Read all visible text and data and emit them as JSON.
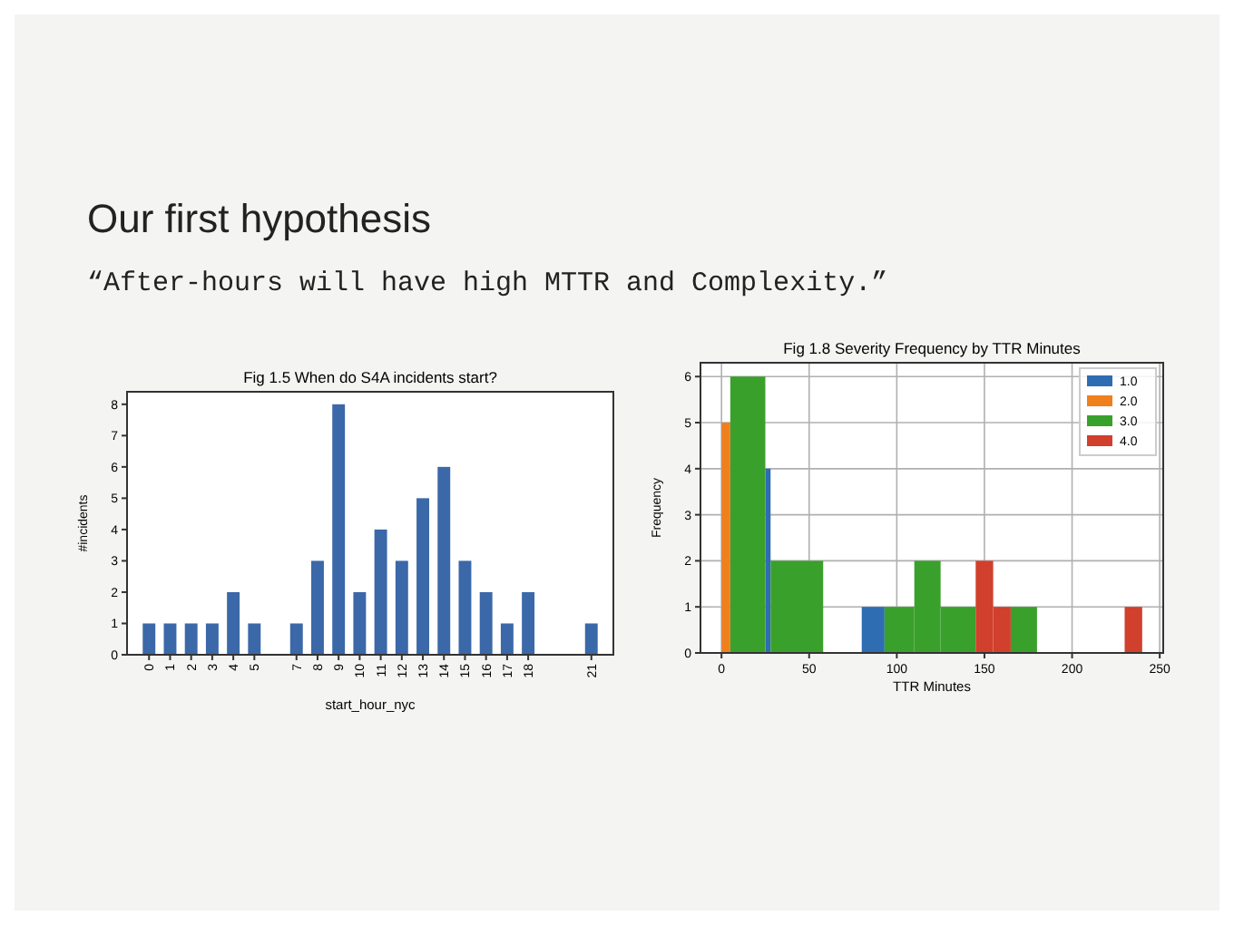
{
  "chart_data": [
    {
      "type": "other",
      "title": "Our first hypothesis",
      "subtitle": "“After-hours will have high MTTR and Complexity.”"
    },
    {
      "type": "bar",
      "title": "Fig 1.5 When do S4A incidents start?",
      "xlabel": "start_hour_nyc",
      "ylabel": "#incidents",
      "categories": [
        "0",
        "1",
        "2",
        "3",
        "4",
        "5",
        null,
        "7",
        "8",
        "9",
        "10",
        "11",
        "12",
        "13",
        "14",
        "15",
        "16",
        "17",
        "18",
        null,
        null,
        "21"
      ],
      "values": [
        1,
        1,
        1,
        1,
        2,
        1,
        null,
        1,
        3,
        8,
        2,
        4,
        3,
        5,
        6,
        3,
        2,
        1,
        2,
        null,
        null,
        1
      ],
      "color": "#3b68a8",
      "ylim": [
        0,
        8.4
      ],
      "yticks": [
        0,
        1,
        2,
        3,
        4,
        5,
        6,
        7,
        8
      ],
      "grid": false
    },
    {
      "type": "histogram",
      "title": "Fig 1.8 Severity Frequency by TTR Minutes",
      "xlabel": "TTR Minutes",
      "ylabel": "Frequency",
      "xlim": [
        -12,
        252
      ],
      "xticks": [
        0,
        50,
        100,
        150,
        200,
        250
      ],
      "ylim": [
        0,
        6.3
      ],
      "yticks": [
        0,
        1,
        2,
        3,
        4,
        5,
        6
      ],
      "grid": true,
      "legend": "top right",
      "bins": [
        0,
        5,
        25,
        28,
        58,
        80,
        93,
        110,
        125,
        145,
        155,
        165,
        180,
        230,
        240
      ],
      "series": [
        {
          "name": "1.0",
          "color": "#2f6db3",
          "values": [
            null,
            null,
            4,
            null,
            null,
            1,
            null,
            null,
            null,
            null,
            null,
            null,
            null,
            null
          ]
        },
        {
          "name": "2.0",
          "color": "#f07f1e",
          "values": [
            5,
            null,
            null,
            null,
            null,
            null,
            null,
            null,
            null,
            null,
            null,
            null,
            null,
            null
          ]
        },
        {
          "name": "3.0",
          "color": "#3aa02c",
          "values": [
            null,
            6,
            null,
            2,
            null,
            null,
            1,
            2,
            1,
            null,
            null,
            1,
            null,
            null
          ]
        },
        {
          "name": "4.0",
          "color": "#d0402c",
          "values": [
            null,
            null,
            null,
            null,
            null,
            null,
            null,
            null,
            null,
            2,
            1,
            null,
            null,
            1
          ]
        }
      ]
    }
  ]
}
